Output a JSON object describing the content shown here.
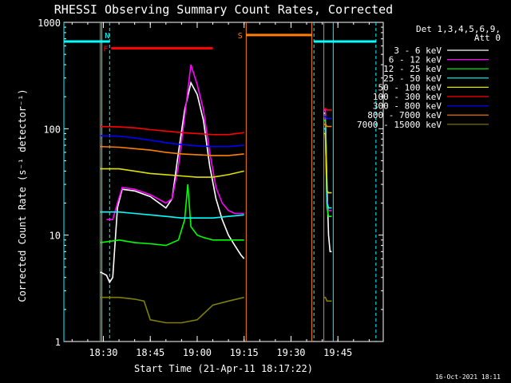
{
  "chart_data": {
    "type": "line",
    "title": "RHESSI Observing Summary Count Rates, Corrected",
    "xlabel": "Start Time (21-Apr-11 18:17:22)",
    "ylabel": "Corrected Count Rate (s⁻¹ detector⁻¹)",
    "y_scale": "log",
    "ylim": [
      1,
      1000
    ],
    "xlim": [
      "18:17:22",
      "19:59:30"
    ],
    "x_ticks": [
      "18:30",
      "18:45",
      "19:00",
      "19:15",
      "19:30",
      "19:45"
    ],
    "y_ticks": [
      "1",
      "10",
      "100",
      "1000"
    ],
    "legend_header": [
      "Det 1,3,4,5,6,9,",
      "Att 0"
    ],
    "legend_position": "right",
    "series": [
      {
        "name": "3 - 6 keV",
        "color": "#ffffff",
        "segments": [
          {
            "x": [
              "18:29:00",
              "18:31:00",
              "18:32:00",
              "18:33:00",
              "18:34:30",
              "18:36:00",
              "18:40:00",
              "18:45:00",
              "18:50:00",
              "18:52:00",
              "18:54:00",
              "18:56:00",
              "18:58:00",
              "19:00:00",
              "19:02:00",
              "19:04:00",
              "19:06:00",
              "19:08:00",
              "19:10:00",
              "19:12:00",
              "19:14:00",
              "19:15:00"
            ],
            "y": [
              4.5,
              4.2,
              3.6,
              4.0,
              18,
              27,
              26,
              23,
              18,
              22,
              60,
              150,
              270,
              210,
              120,
              45,
              22,
              14,
              10,
              8,
              6.5,
              6
            ]
          },
          {
            "x": [
              "19:40:30",
              "19:41:00",
              "19:41:30",
              "19:42:00",
              "19:42:30",
              "19:43:00"
            ],
            "y": [
              140,
              140,
              30,
              10,
              7,
              7
            ]
          }
        ]
      },
      {
        "name": "6 - 12 keV",
        "color": "#ff00ff",
        "segments": [
          {
            "x": [
              "18:31:00",
              "18:33:00",
              "18:34:30",
              "18:36:00",
              "18:40:00",
              "18:45:00",
              "18:50:00",
              "18:52:00",
              "18:54:00",
              "18:56:00",
              "18:58:00",
              "19:00:00",
              "19:02:00",
              "19:04:00",
              "19:06:00",
              "19:08:00",
              "19:10:00",
              "19:12:00",
              "19:15:00"
            ],
            "y": [
              14,
              14,
              20,
              28,
              27,
              24,
              20,
              22,
              45,
              130,
              400,
              260,
              150,
              60,
              28,
              20,
              17,
              16,
              16
            ]
          },
          {
            "x": [
              "19:40:30",
              "19:41:00",
              "19:41:30",
              "19:42:00",
              "19:42:30",
              "19:43:00"
            ],
            "y": [
              150,
              150,
              22,
              17,
              17,
              17
            ]
          }
        ]
      },
      {
        "name": "12 - 25 keV",
        "color": "#00ff00",
        "segments": [
          {
            "x": [
              "18:29:00",
              "18:35:00",
              "18:40:00",
              "18:45:00",
              "18:50:00",
              "18:54:00",
              "18:56:00",
              "18:57:00",
              "18:58:00",
              "19:00:00",
              "19:02:00",
              "19:05:00",
              "19:10:00",
              "19:15:00"
            ],
            "y": [
              8.5,
              9,
              8.5,
              8.3,
              8.0,
              9.0,
              14,
              30,
              12,
              10,
              9.5,
              9.0,
              9.0,
              9.0
            ]
          },
          {
            "x": [
              "19:40:30",
              "19:41:00",
              "19:41:30",
              "19:42:00",
              "19:43:00"
            ],
            "y": [
              120,
              120,
              18,
              15,
              15
            ]
          }
        ]
      },
      {
        "name": "25 - 50 keV",
        "color": "#00ffff",
        "segments": [
          {
            "x": [
              "18:29:00",
              "18:35:00",
              "18:40:00",
              "18:45:00",
              "18:50:00",
              "18:55:00",
              "18:58:00",
              "19:00:00",
              "19:05:00",
              "19:10:00",
              "19:15:00"
            ],
            "y": [
              16.5,
              16.5,
              16,
              15.5,
              15,
              14.5,
              14.5,
              14.5,
              14.5,
              15,
              15.5
            ]
          },
          {
            "x": [
              "19:40:30",
              "19:41:00",
              "19:41:30",
              "19:42:00",
              "19:43:00"
            ],
            "y": [
              100,
              100,
              20,
              18,
              18
            ]
          }
        ]
      },
      {
        "name": "50 - 100 keV",
        "color": "#e0e000",
        "segments": [
          {
            "x": [
              "18:29:00",
              "18:35:00",
              "18:40:00",
              "18:45:00",
              "18:50:00",
              "18:55:00",
              "19:00:00",
              "19:05:00",
              "19:10:00",
              "19:15:00"
            ],
            "y": [
              42,
              42,
              40,
              38,
              37,
              36,
              35,
              35,
              37,
              40
            ]
          },
          {
            "x": [
              "19:40:30",
              "19:41:00",
              "19:41:30",
              "19:42:00",
              "19:43:00"
            ],
            "y": [
              90,
              90,
              26,
              25,
              25
            ]
          }
        ]
      },
      {
        "name": "100 - 300 keV",
        "color": "#ff0000",
        "segments": [
          {
            "x": [
              "18:29:00",
              "18:35:00",
              "18:40:00",
              "18:45:00",
              "18:50:00",
              "18:55:00",
              "19:00:00",
              "19:05:00",
              "19:10:00",
              "19:15:00"
            ],
            "y": [
              105,
              104,
              102,
              98,
              95,
              92,
              90,
              88,
              88,
              92
            ]
          },
          {
            "x": [
              "19:40:30",
              "19:41:00",
              "19:41:30",
              "19:42:00",
              "19:43:00"
            ],
            "y": [
              155,
              155,
              150,
              150,
              150
            ]
          }
        ]
      },
      {
        "name": "300 - 800 keV",
        "color": "#0000ff",
        "segments": [
          {
            "x": [
              "18:29:00",
              "18:35:00",
              "18:40:00",
              "18:45:00",
              "18:50:00",
              "18:55:00",
              "19:00:00",
              "19:05:00",
              "19:10:00",
              "19:15:00"
            ],
            "y": [
              86,
              85,
              82,
              78,
              74,
              71,
              69,
              68,
              68,
              70
            ]
          },
          {
            "x": [
              "19:40:30",
              "19:41:00",
              "19:41:30",
              "19:42:00",
              "19:43:00"
            ],
            "y": [
              130,
              130,
              125,
              125,
              125
            ]
          }
        ]
      },
      {
        "name": "800 - 7000 keV",
        "color": "#ff8000",
        "segments": [
          {
            "x": [
              "18:29:00",
              "18:35:00",
              "18:40:00",
              "18:45:00",
              "18:50:00",
              "18:55:00",
              "19:00:00",
              "19:05:00",
              "19:10:00",
              "19:15:00"
            ],
            "y": [
              68,
              67,
              65,
              63,
              60,
              58,
              57,
              56,
              56,
              58
            ]
          },
          {
            "x": [
              "19:40:30",
              "19:41:00",
              "19:41:30",
              "19:42:00",
              "19:43:00"
            ],
            "y": [
              110,
              110,
              105,
              105,
              105
            ]
          }
        ]
      },
      {
        "name": "7000 - 15000 keV",
        "color": "#808000",
        "segments": [
          {
            "x": [
              "18:29:00",
              "18:35:00",
              "18:40:00",
              "18:43:00",
              "18:45:00",
              "18:50:00",
              "18:55:00",
              "19:00:00",
              "19:05:00",
              "19:10:00",
              "19:15:00"
            ],
            "y": [
              2.6,
              2.6,
              2.5,
              2.4,
              1.6,
              1.5,
              1.5,
              1.6,
              2.2,
              2.4,
              2.6
            ]
          },
          {
            "x": [
              "19:40:30",
              "19:41:00",
              "19:41:30",
              "19:42:00",
              "19:43:00"
            ],
            "y": [
              2.6,
              2.6,
              2.4,
              2.4,
              2.4
            ]
          }
        ]
      }
    ],
    "flags": [
      {
        "label": "N",
        "color": "#00ffff",
        "label_x": "18:32:00",
        "label_y": 760,
        "bars": [
          {
            "x0": "18:17:22",
            "x1": "18:32:00",
            "y": 660
          },
          {
            "x0": "19:37:20",
            "x1": "19:57:10",
            "y": 660
          }
        ]
      },
      {
        "label": "F",
        "color": "#ff0000",
        "label_x": "18:31:30",
        "label_y": 570,
        "bars": [
          {
            "x0": "18:32:30",
            "x1": "19:05:00",
            "y": 570
          }
        ]
      },
      {
        "label": "S",
        "color": "#ff8000",
        "label_x": "19:14:30",
        "label_y": 760,
        "bars": [
          {
            "x0": "19:15:40",
            "x1": "19:36:40",
            "y": 760
          }
        ]
      }
    ],
    "vertical_markers": [
      {
        "x": "18:17:22",
        "color": "#00ffff",
        "style": "solid"
      },
      {
        "x": "18:29:00",
        "color": "#00ff00",
        "style": "solid"
      },
      {
        "x": "18:29:30",
        "color": "#00ffff",
        "style": "solid"
      },
      {
        "x": "18:32:00",
        "color": "#00ffff",
        "style": "dashed"
      },
      {
        "x": "19:15:40",
        "color": "#ff8000",
        "style": "solid"
      },
      {
        "x": "19:36:40",
        "color": "#ff8000",
        "style": "solid"
      },
      {
        "x": "19:37:20",
        "color": "#00ffff",
        "style": "dashed"
      },
      {
        "x": "19:40:30",
        "color": "#ff8000",
        "style": "solid"
      },
      {
        "x": "19:43:30",
        "color": "#00ffff",
        "style": "solid"
      },
      {
        "x": "19:57:10",
        "color": "#00ffff",
        "style": "dashed"
      }
    ]
  },
  "footer": {
    "timestamp": "16-Oct-2021 18:11"
  }
}
